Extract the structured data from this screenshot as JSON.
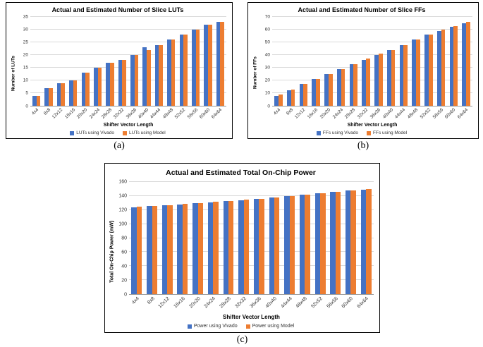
{
  "captions": {
    "a": "(a)",
    "b": "(b)",
    "c": "(c)"
  },
  "chart_data": [
    {
      "id": "slice-luts",
      "type": "bar",
      "title": "Actual and Estimated Number of Slice LUTs",
      "xlabel": "Shifter Vector Length",
      "ylabel": "Number of LUTs",
      "ylim": [
        0,
        35
      ],
      "ytick": 5,
      "grid": true,
      "legend_position": "bottom",
      "categories": [
        "4x4",
        "8x8",
        "12x12",
        "16x16",
        "20x20",
        "24x24",
        "28x28",
        "32x32",
        "36x36",
        "40x40",
        "44x44",
        "48x48",
        "52x52",
        "56x56",
        "60x60",
        "64x64"
      ],
      "series": [
        {
          "name": "LUTs using Vivado",
          "color": "#4472C4",
          "values": [
            4,
            7,
            9,
            10,
            13,
            15,
            17,
            18,
            20,
            23,
            24,
            26,
            28,
            30,
            32,
            33
          ]
        },
        {
          "name": "LUTs using Model",
          "color": "#ED7D31",
          "values": [
            4,
            7,
            9,
            10,
            13,
            15,
            17,
            18,
            20,
            22,
            24,
            26,
            28,
            30,
            32,
            33
          ]
        }
      ]
    },
    {
      "id": "slice-ffs",
      "type": "bar",
      "title": "Actual and Estimated Number of Slice FFs",
      "xlabel": "Shifter Vector Length",
      "ylabel": "Number of FFs",
      "ylim": [
        0,
        70
      ],
      "ytick": 10,
      "grid": true,
      "legend_position": "bottom",
      "categories": [
        "4x4",
        "8x8",
        "12x12",
        "16x16",
        "20x20",
        "24x24",
        "28x28",
        "32x32",
        "36x36",
        "40x40",
        "44x44",
        "48x48",
        "52x52",
        "56x56",
        "60x60",
        "64x64"
      ],
      "series": [
        {
          "name": "FFs using Vivado",
          "color": "#4472C4",
          "values": [
            8,
            12,
            17,
            21,
            25,
            29,
            33,
            36,
            40,
            44,
            48,
            52,
            56,
            59,
            62,
            65
          ]
        },
        {
          "name": "FFs using Model",
          "color": "#ED7D31",
          "values": [
            9,
            13,
            17,
            21,
            25,
            29,
            33,
            37,
            41,
            44,
            48,
            52,
            56,
            60,
            63,
            66
          ]
        }
      ]
    },
    {
      "id": "on-chip-power",
      "type": "bar",
      "title": "Actual and Estimated Total On-Chip Power",
      "xlabel": "Shifter Vector Length",
      "ylabel": "Total On-Chip Power (mW)",
      "ylim": [
        0,
        160
      ],
      "ytick": 20,
      "grid": true,
      "legend_position": "bottom",
      "categories": [
        "4x4",
        "8x8",
        "12x12",
        "16x16",
        "20x20",
        "24x24",
        "28x28",
        "32x32",
        "36x36",
        "40x40",
        "44x44",
        "48x48",
        "52x52",
        "56x56",
        "60x60",
        "64x64"
      ],
      "series": [
        {
          "name": "Power using Vivado",
          "color": "#4472C4",
          "values": [
            124,
            126,
            127,
            128,
            130,
            131,
            133,
            134,
            136,
            138,
            140,
            142,
            144,
            146,
            148,
            149
          ]
        },
        {
          "name": "Power using Model",
          "color": "#ED7D31",
          "values": [
            125,
            126,
            127,
            129,
            130,
            132,
            133,
            135,
            136,
            138,
            140,
            142,
            144,
            146,
            148,
            150
          ]
        }
      ]
    }
  ]
}
